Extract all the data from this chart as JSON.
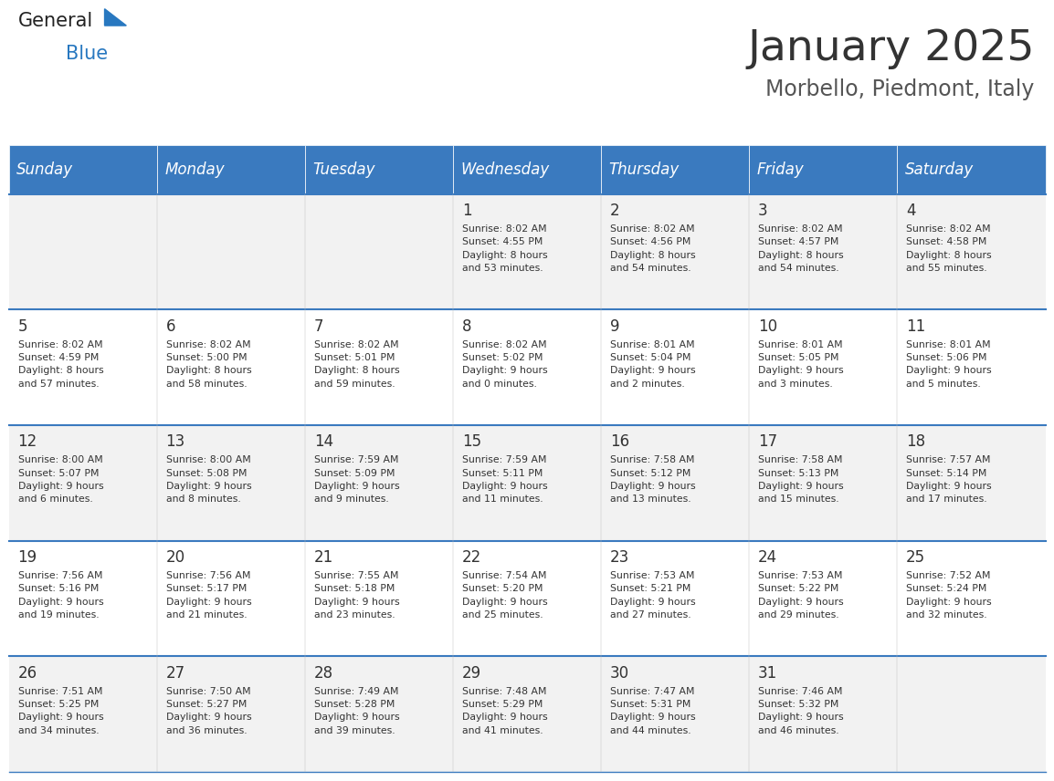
{
  "title": "January 2025",
  "subtitle": "Morbello, Piedmont, Italy",
  "header_bg_color": "#3a7abf",
  "header_text_color": "#ffffff",
  "title_color": "#333333",
  "subtitle_color": "#555555",
  "day_names": [
    "Sunday",
    "Monday",
    "Tuesday",
    "Wednesday",
    "Thursday",
    "Friday",
    "Saturday"
  ],
  "row_bg_even": "#f2f2f2",
  "row_bg_odd": "#ffffff",
  "cell_border_color": "#3a7abf",
  "day_num_color": "#333333",
  "cell_text_color": "#333333",
  "logo_blue_color": "#2878c0",
  "logo_dark_color": "#222222",
  "calendar": [
    [
      {
        "day": null,
        "info": null
      },
      {
        "day": null,
        "info": null
      },
      {
        "day": null,
        "info": null
      },
      {
        "day": 1,
        "info": "Sunrise: 8:02 AM\nSunset: 4:55 PM\nDaylight: 8 hours\nand 53 minutes."
      },
      {
        "day": 2,
        "info": "Sunrise: 8:02 AM\nSunset: 4:56 PM\nDaylight: 8 hours\nand 54 minutes."
      },
      {
        "day": 3,
        "info": "Sunrise: 8:02 AM\nSunset: 4:57 PM\nDaylight: 8 hours\nand 54 minutes."
      },
      {
        "day": 4,
        "info": "Sunrise: 8:02 AM\nSunset: 4:58 PM\nDaylight: 8 hours\nand 55 minutes."
      }
    ],
    [
      {
        "day": 5,
        "info": "Sunrise: 8:02 AM\nSunset: 4:59 PM\nDaylight: 8 hours\nand 57 minutes."
      },
      {
        "day": 6,
        "info": "Sunrise: 8:02 AM\nSunset: 5:00 PM\nDaylight: 8 hours\nand 58 minutes."
      },
      {
        "day": 7,
        "info": "Sunrise: 8:02 AM\nSunset: 5:01 PM\nDaylight: 8 hours\nand 59 minutes."
      },
      {
        "day": 8,
        "info": "Sunrise: 8:02 AM\nSunset: 5:02 PM\nDaylight: 9 hours\nand 0 minutes."
      },
      {
        "day": 9,
        "info": "Sunrise: 8:01 AM\nSunset: 5:04 PM\nDaylight: 9 hours\nand 2 minutes."
      },
      {
        "day": 10,
        "info": "Sunrise: 8:01 AM\nSunset: 5:05 PM\nDaylight: 9 hours\nand 3 minutes."
      },
      {
        "day": 11,
        "info": "Sunrise: 8:01 AM\nSunset: 5:06 PM\nDaylight: 9 hours\nand 5 minutes."
      }
    ],
    [
      {
        "day": 12,
        "info": "Sunrise: 8:00 AM\nSunset: 5:07 PM\nDaylight: 9 hours\nand 6 minutes."
      },
      {
        "day": 13,
        "info": "Sunrise: 8:00 AM\nSunset: 5:08 PM\nDaylight: 9 hours\nand 8 minutes."
      },
      {
        "day": 14,
        "info": "Sunrise: 7:59 AM\nSunset: 5:09 PM\nDaylight: 9 hours\nand 9 minutes."
      },
      {
        "day": 15,
        "info": "Sunrise: 7:59 AM\nSunset: 5:11 PM\nDaylight: 9 hours\nand 11 minutes."
      },
      {
        "day": 16,
        "info": "Sunrise: 7:58 AM\nSunset: 5:12 PM\nDaylight: 9 hours\nand 13 minutes."
      },
      {
        "day": 17,
        "info": "Sunrise: 7:58 AM\nSunset: 5:13 PM\nDaylight: 9 hours\nand 15 minutes."
      },
      {
        "day": 18,
        "info": "Sunrise: 7:57 AM\nSunset: 5:14 PM\nDaylight: 9 hours\nand 17 minutes."
      }
    ],
    [
      {
        "day": 19,
        "info": "Sunrise: 7:56 AM\nSunset: 5:16 PM\nDaylight: 9 hours\nand 19 minutes."
      },
      {
        "day": 20,
        "info": "Sunrise: 7:56 AM\nSunset: 5:17 PM\nDaylight: 9 hours\nand 21 minutes."
      },
      {
        "day": 21,
        "info": "Sunrise: 7:55 AM\nSunset: 5:18 PM\nDaylight: 9 hours\nand 23 minutes."
      },
      {
        "day": 22,
        "info": "Sunrise: 7:54 AM\nSunset: 5:20 PM\nDaylight: 9 hours\nand 25 minutes."
      },
      {
        "day": 23,
        "info": "Sunrise: 7:53 AM\nSunset: 5:21 PM\nDaylight: 9 hours\nand 27 minutes."
      },
      {
        "day": 24,
        "info": "Sunrise: 7:53 AM\nSunset: 5:22 PM\nDaylight: 9 hours\nand 29 minutes."
      },
      {
        "day": 25,
        "info": "Sunrise: 7:52 AM\nSunset: 5:24 PM\nDaylight: 9 hours\nand 32 minutes."
      }
    ],
    [
      {
        "day": 26,
        "info": "Sunrise: 7:51 AM\nSunset: 5:25 PM\nDaylight: 9 hours\nand 34 minutes."
      },
      {
        "day": 27,
        "info": "Sunrise: 7:50 AM\nSunset: 5:27 PM\nDaylight: 9 hours\nand 36 minutes."
      },
      {
        "day": 28,
        "info": "Sunrise: 7:49 AM\nSunset: 5:28 PM\nDaylight: 9 hours\nand 39 minutes."
      },
      {
        "day": 29,
        "info": "Sunrise: 7:48 AM\nSunset: 5:29 PM\nDaylight: 9 hours\nand 41 minutes."
      },
      {
        "day": 30,
        "info": "Sunrise: 7:47 AM\nSunset: 5:31 PM\nDaylight: 9 hours\nand 44 minutes."
      },
      {
        "day": 31,
        "info": "Sunrise: 7:46 AM\nSunset: 5:32 PM\nDaylight: 9 hours\nand 46 minutes."
      },
      {
        "day": null,
        "info": null
      }
    ]
  ]
}
